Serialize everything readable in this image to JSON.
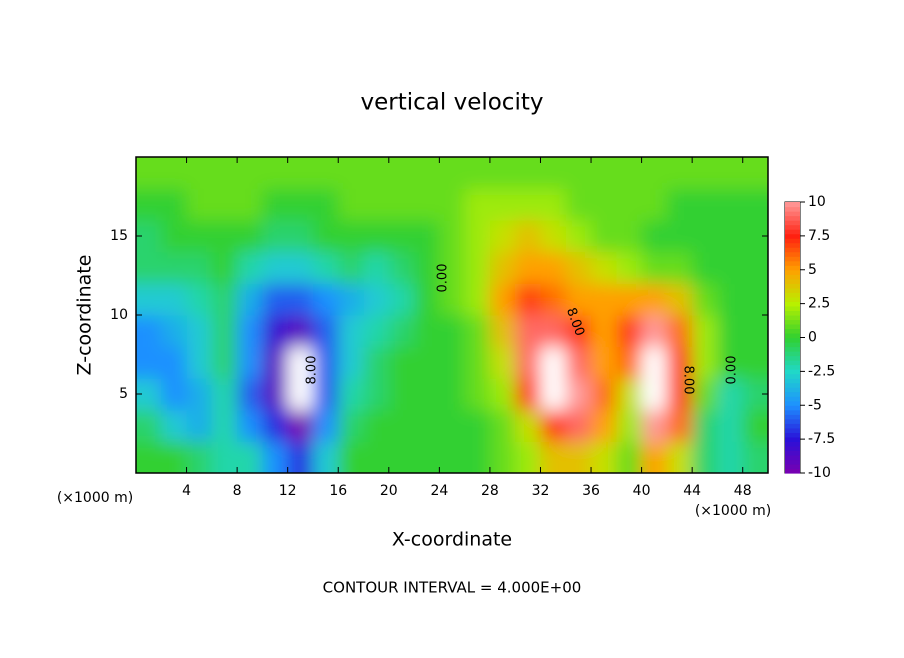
{
  "chart_data": {
    "type": "heatmap",
    "title": "vertical velocity",
    "x_label": "X-coordinate",
    "y_label": "Z-coordinate",
    "x_unit": "(×1000 m)",
    "footer": "CONTOUR INTERVAL = 4.000E+00",
    "xlim": [
      0,
      50
    ],
    "ylim": [
      0,
      20
    ],
    "xticks": [
      4,
      8,
      12,
      16,
      20,
      24,
      28,
      32,
      36,
      40,
      44,
      48
    ],
    "yticks": [
      5,
      10,
      15
    ],
    "clim": [
      -10,
      10
    ],
    "cticks": [
      -10,
      -7.5,
      -5,
      -2.5,
      0,
      2.5,
      5,
      7.5,
      10
    ],
    "colors": [
      "#7a00b0",
      "#2a10d8",
      "#1e90ff",
      "#20d8c8",
      "#30d030",
      "#b8f000",
      "#ffa000",
      "#ff2010",
      "#ff9a9a"
    ],
    "over_color": "#ffffff",
    "under_color": "#ffffff",
    "contour_labels": [
      "0.00",
      "8.00",
      "8.00",
      "8.00",
      "0.00"
    ],
    "x": [
      1,
      3,
      5,
      7,
      9,
      11,
      13,
      15,
      17,
      19,
      21,
      23,
      25,
      27,
      29,
      31,
      33,
      35,
      37,
      39,
      41,
      43,
      45,
      47,
      49
    ],
    "y": [
      1,
      3,
      5,
      7,
      9,
      11,
      13,
      15,
      17,
      19
    ],
    "z": [
      [
        0,
        0,
        -1,
        -2,
        -2,
        -5,
        -7,
        -3,
        0,
        0,
        0,
        0,
        0,
        0,
        1,
        2,
        4,
        4,
        3,
        1,
        5,
        3,
        -1,
        -2,
        -1
      ],
      [
        -1,
        -3,
        -4,
        -2,
        -5,
        -7,
        -10,
        -5,
        -1,
        0,
        0,
        0,
        0,
        0,
        1,
        3,
        7,
        9,
        5,
        2,
        10,
        6,
        -1,
        -2,
        0
      ],
      [
        -3,
        -5,
        -4,
        -2,
        -6,
        -9,
        -11,
        -6,
        -2,
        -1,
        0,
        0,
        0,
        1,
        2,
        7,
        11,
        10,
        6,
        3,
        11,
        7,
        1,
        -2,
        -1
      ],
      [
        -5,
        -5,
        -3,
        -1,
        -5,
        -9,
        -11,
        -6,
        -3,
        -1,
        0,
        0,
        0,
        1,
        3,
        9,
        11,
        9,
        5,
        6,
        12,
        7,
        2,
        0,
        0
      ],
      [
        -5,
        -4,
        -3,
        -1,
        -5,
        -8,
        -9,
        -6,
        -3,
        -2,
        -1,
        0,
        0,
        1,
        4,
        9,
        9,
        7,
        5,
        7,
        10,
        6,
        2,
        0,
        0
      ],
      [
        -3,
        -3,
        -2,
        -1,
        -4,
        -6,
        -6,
        -5,
        -4,
        -3,
        -2,
        0,
        1,
        2,
        5,
        7,
        6,
        5,
        5,
        5,
        5,
        4,
        1,
        0,
        0
      ],
      [
        -1,
        -1,
        -1,
        0,
        -2,
        -3,
        -3,
        -2,
        -1,
        -2,
        -1,
        0,
        1,
        2,
        4,
        5,
        5,
        4,
        3,
        2,
        1,
        1,
        0,
        0,
        0
      ],
      [
        -1,
        0,
        0,
        0,
        0,
        -1,
        -1,
        0,
        0,
        0,
        0,
        0,
        1,
        2,
        3,
        4,
        3,
        2,
        1,
        1,
        0,
        0,
        0,
        0,
        0
      ],
      [
        0,
        0,
        1,
        1,
        1,
        0,
        0,
        0,
        1,
        1,
        1,
        1,
        1,
        2,
        2,
        2,
        2,
        1,
        1,
        1,
        1,
        0,
        0,
        0,
        0
      ],
      [
        1,
        1,
        1,
        1,
        1,
        1,
        1,
        1,
        1,
        1,
        1,
        1,
        1,
        1,
        1,
        1,
        1,
        1,
        1,
        1,
        1,
        1,
        1,
        1,
        1
      ]
    ]
  }
}
